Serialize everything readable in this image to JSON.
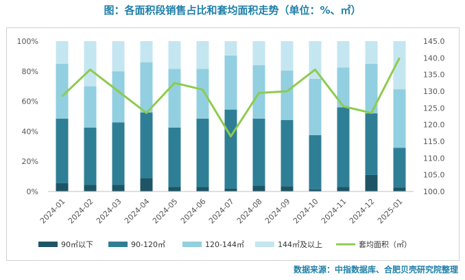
{
  "title": "图：各面积段销售占比和套均面积走势（单位：%、㎡）",
  "source": "数据来源：中指数据库、合肥贝壳研究院整理",
  "colors": {
    "s1": "#1e5566",
    "s2": "#2e7f95",
    "s3": "#92cfe0",
    "s4": "#c4e6f0",
    "line": "#8dcb4f"
  },
  "chart_data": {
    "type": "bar",
    "stacked": true,
    "categories": [
      "2024-01",
      "2024-02",
      "2024-03",
      "2024-04",
      "2024-05",
      "2024-06",
      "2024-07",
      "2024-08",
      "2024-09",
      "2024-10",
      "2024-11",
      "2024-12",
      "2025-01"
    ],
    "series": [
      {
        "name": "90㎡以下",
        "axis": "left",
        "values": [
          5.5,
          4.5,
          4.5,
          9,
          3,
          3,
          2,
          4,
          3.5,
          1.5,
          3,
          11,
          2.5
        ]
      },
      {
        "name": "90-120㎡",
        "axis": "left",
        "values": [
          43,
          38,
          41.5,
          43.5,
          39.5,
          45.5,
          52.5,
          44.5,
          44,
          36,
          53,
          41,
          26.5
        ]
      },
      {
        "name": "120-144㎡",
        "axis": "left",
        "values": [
          36.5,
          27.5,
          34,
          33.5,
          39,
          33,
          36,
          35.5,
          33,
          37.5,
          26.5,
          33,
          39
        ]
      },
      {
        "name": "144㎡及以上",
        "axis": "left",
        "values": [
          15,
          30,
          20,
          14,
          18.5,
          18.5,
          9.5,
          16,
          19.5,
          25,
          17.5,
          15,
          32
        ]
      },
      {
        "name": "套均面积（㎡）",
        "type": "line",
        "axis": "right",
        "values": [
          128.5,
          136.5,
          130,
          123.5,
          132.5,
          130.5,
          116.5,
          129.5,
          130,
          136.5,
          125.5,
          123.5,
          140
        ]
      }
    ],
    "y_left": {
      "min": 0,
      "max": 100,
      "ticks": [
        "0%",
        "20%",
        "40%",
        "60%",
        "80%",
        "100%"
      ]
    },
    "y_right": {
      "min": 100,
      "max": 145,
      "ticks": [
        "100.0",
        "105.0",
        "110.0",
        "115.0",
        "120.0",
        "125.0",
        "130.0",
        "135.0",
        "140.0",
        "145.0"
      ]
    },
    "legend_position": "bottom"
  }
}
